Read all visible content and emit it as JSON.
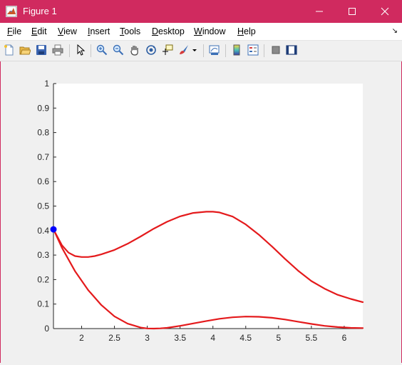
{
  "window": {
    "title": "Figure 1",
    "title_bar_color": "#d02a5f"
  },
  "menu": {
    "items": [
      {
        "label": "File",
        "mnemonic": "F",
        "rest": "ile"
      },
      {
        "label": "Edit",
        "mnemonic": "E",
        "rest": "dit"
      },
      {
        "label": "View",
        "mnemonic": "V",
        "rest": "iew"
      },
      {
        "label": "Insert",
        "mnemonic": "I",
        "rest": "nsert"
      },
      {
        "label": "Tools",
        "mnemonic": "T",
        "rest": "ools"
      },
      {
        "label": "Desktop",
        "mnemonic": "D",
        "rest": "esktop"
      },
      {
        "label": "Window",
        "mnemonic": "W",
        "rest": "indow"
      },
      {
        "label": "Help",
        "mnemonic": "H",
        "rest": "elp"
      }
    ]
  },
  "toolbar": {
    "icons": [
      "new-figure-icon",
      "open-file-icon",
      "save-icon",
      "print-icon",
      "edit-plot-icon",
      "zoom-in-icon",
      "zoom-out-icon",
      "pan-icon",
      "rotate-3d-icon",
      "data-cursor-icon",
      "brush-icon",
      "link-plot-icon",
      "colorbar-icon",
      "legend-icon",
      "hide-plot-tools-icon",
      "show-plot-tools-icon"
    ]
  },
  "chart_data": {
    "type": "line",
    "title": "",
    "xlabel": "",
    "ylabel": "",
    "xlim": [
      1.5708,
      6.2832
    ],
    "ylim": [
      0,
      1
    ],
    "xticks": [
      "2",
      "2.5",
      "3",
      "3.5",
      "4",
      "4.5",
      "5",
      "5.5",
      "6"
    ],
    "yticks": [
      "0",
      "0.1",
      "0.2",
      "0.3",
      "0.4",
      "0.5",
      "0.6",
      "0.7",
      "0.8",
      "0.9",
      "1"
    ],
    "grid": false,
    "series": [
      {
        "color": "#e41a1c",
        "x": [
          1.571,
          1.7,
          1.8,
          1.9,
          2.0,
          2.1,
          2.2,
          2.3,
          2.5,
          2.7,
          2.9,
          3.1,
          3.3,
          3.5,
          3.7,
          3.9,
          4.0,
          4.1,
          4.3,
          4.5,
          4.7,
          4.9,
          5.1,
          5.3,
          5.5,
          5.7,
          5.9,
          6.1,
          6.283
        ],
        "y": [
          0.405,
          0.34,
          0.31,
          0.296,
          0.292,
          0.292,
          0.296,
          0.303,
          0.321,
          0.346,
          0.376,
          0.408,
          0.436,
          0.458,
          0.472,
          0.477,
          0.477,
          0.474,
          0.457,
          0.425,
          0.383,
          0.335,
          0.284,
          0.236,
          0.194,
          0.163,
          0.138,
          0.121,
          0.108
        ]
      },
      {
        "color": "#e41a1c",
        "x": [
          1.571,
          1.7,
          1.9,
          2.1,
          2.3,
          2.5,
          2.7,
          2.9,
          3.0,
          3.1,
          3.2,
          3.3,
          3.5,
          3.7,
          3.9,
          4.1,
          4.3,
          4.5,
          4.7,
          4.9,
          5.1,
          5.3,
          5.5,
          5.7,
          5.9,
          6.1,
          6.283
        ],
        "y": [
          0.405,
          0.33,
          0.234,
          0.157,
          0.096,
          0.05,
          0.02,
          0.004,
          0.0005,
          0.0,
          0.001,
          0.003,
          0.011,
          0.021,
          0.031,
          0.04,
          0.046,
          0.049,
          0.048,
          0.044,
          0.037,
          0.028,
          0.019,
          0.011,
          0.006,
          0.003,
          0.002
        ]
      }
    ],
    "markers": [
      {
        "x": 1.571,
        "y": 0.405,
        "color": "#0000ff"
      }
    ]
  }
}
